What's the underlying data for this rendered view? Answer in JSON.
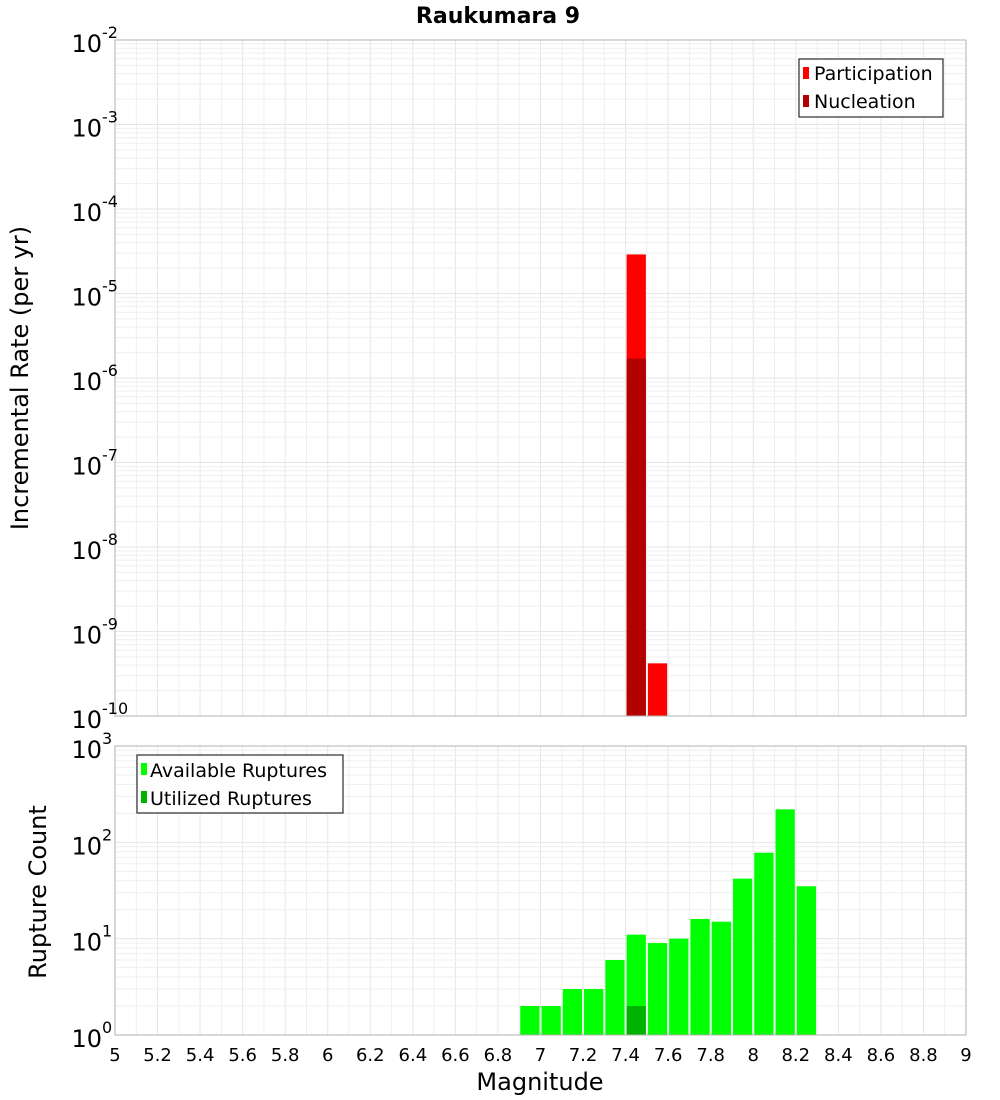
{
  "chart_data": [
    {
      "panel": "top",
      "type": "bar",
      "title": "Raukumara 9",
      "ylabel": "Incremental Rate (per yr)",
      "xlabel": "",
      "y_scale": "log",
      "ylim_exp": [
        -10,
        -2
      ],
      "xlim": [
        5,
        9
      ],
      "bin_width": 0.1,
      "legend": {
        "placement": "top-right"
      },
      "series": [
        {
          "name": "Participation",
          "color": "#ff0000",
          "points": [
            [
              7.45,
              2.9e-05
            ],
            [
              7.55,
              4.2e-10
            ]
          ]
        },
        {
          "name": "Nucleation",
          "color": "#b30000",
          "points": [
            [
              7.45,
              1.7e-06
            ]
          ]
        }
      ]
    },
    {
      "panel": "bottom",
      "type": "bar",
      "title": "",
      "ylabel": "Rupture Count",
      "xlabel": "Magnitude",
      "y_scale": "log",
      "ylim_exp": [
        0,
        3
      ],
      "xlim": [
        5,
        9
      ],
      "bin_width": 0.1,
      "x_ticks": [
        "5",
        "5.2",
        "5.4",
        "5.6",
        "5.8",
        "6",
        "6.2",
        "6.4",
        "6.6",
        "6.8",
        "7",
        "7.2",
        "7.4",
        "7.6",
        "7.8",
        "8",
        "8.2",
        "8.4",
        "8.6",
        "8.8",
        "9"
      ],
      "legend": {
        "placement": "top-left"
      },
      "series": [
        {
          "name": "Available Ruptures",
          "color": "#00ff00",
          "points": [
            [
              6.25,
              1
            ],
            [
              6.85,
              1
            ],
            [
              6.95,
              2
            ],
            [
              7.05,
              2
            ],
            [
              7.15,
              3
            ],
            [
              7.25,
              3
            ],
            [
              7.35,
              6
            ],
            [
              7.45,
              11
            ],
            [
              7.55,
              9
            ],
            [
              7.65,
              10
            ],
            [
              7.75,
              16
            ],
            [
              7.85,
              15
            ],
            [
              7.95,
              42
            ],
            [
              8.05,
              78
            ],
            [
              8.15,
              220
            ],
            [
              8.25,
              35
            ]
          ]
        },
        {
          "name": "Utilized Ruptures",
          "color": "#00b300",
          "points": [
            [
              7.45,
              2
            ],
            [
              7.55,
              1
            ]
          ]
        }
      ]
    }
  ]
}
